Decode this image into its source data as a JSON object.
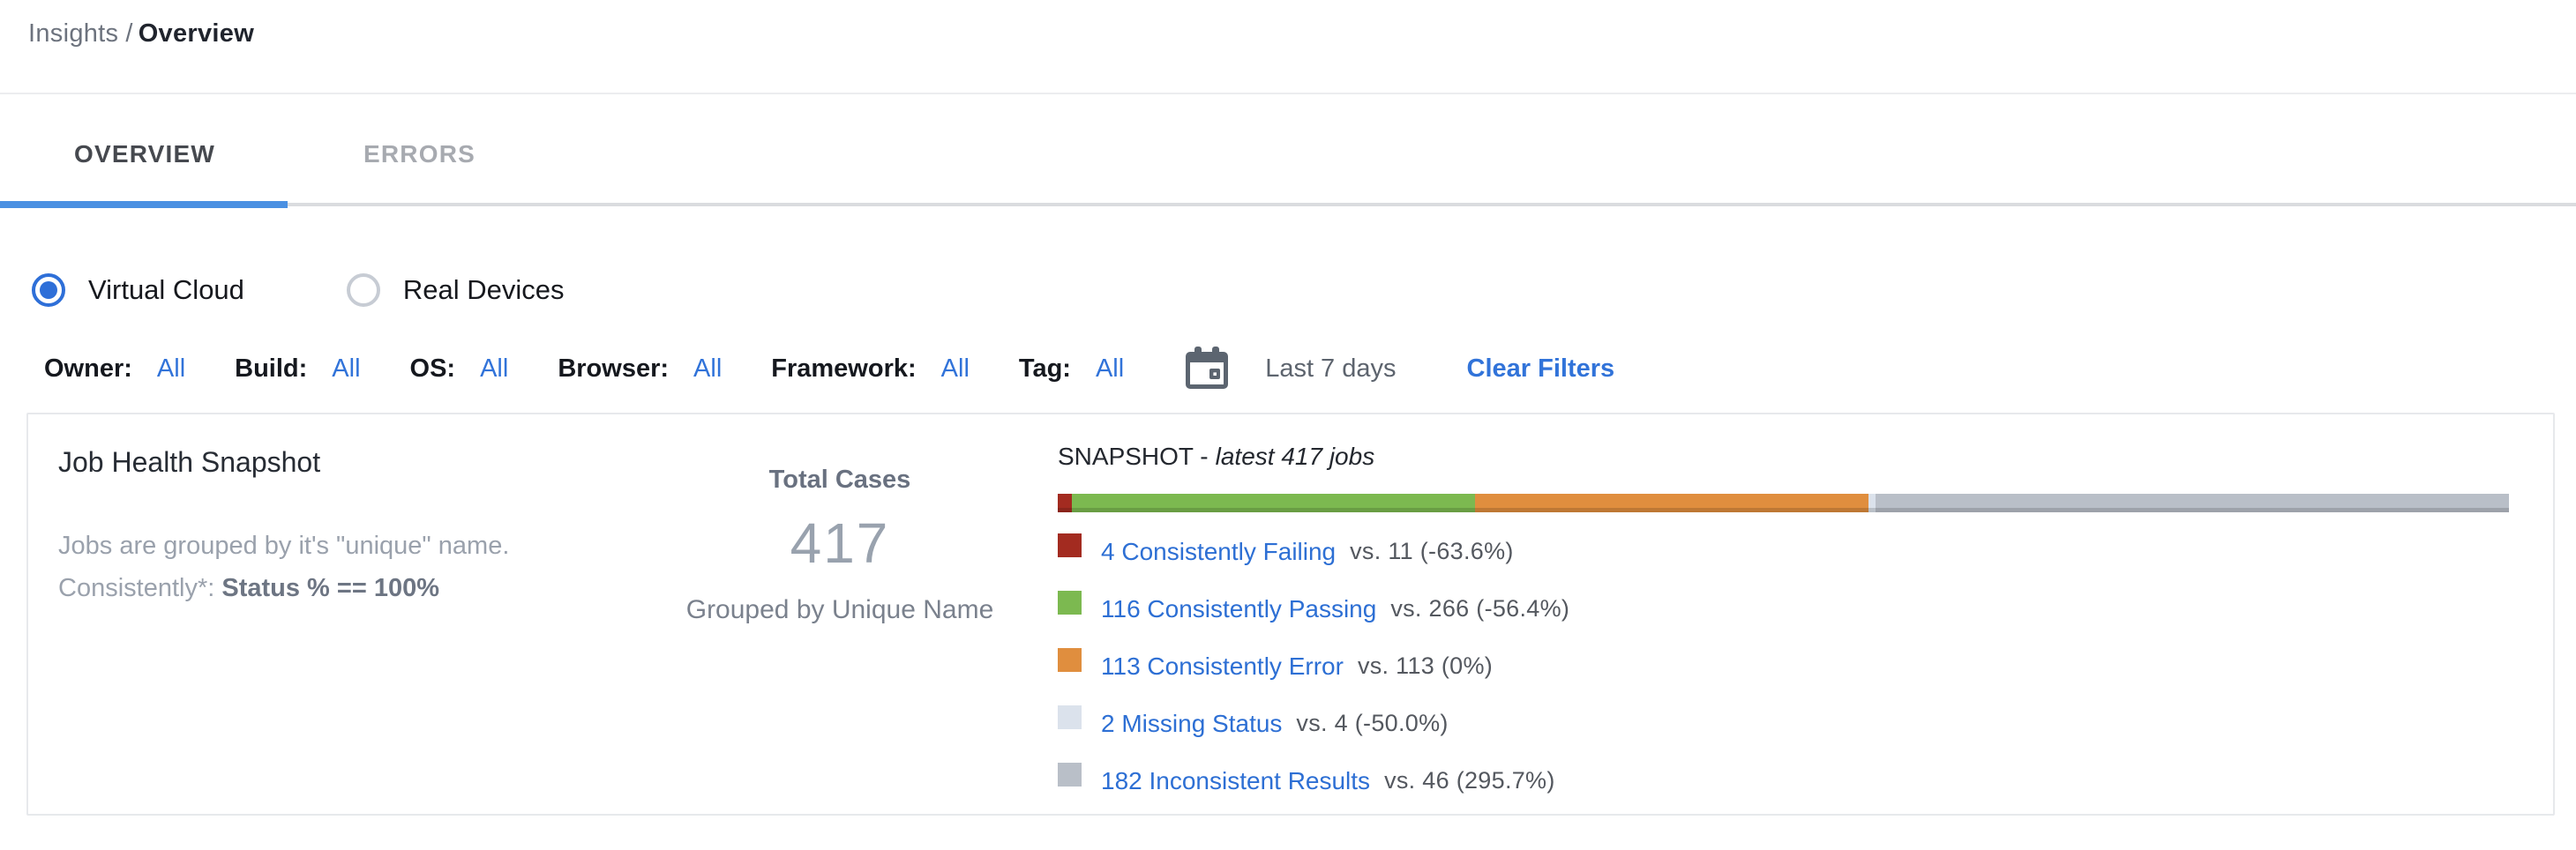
{
  "breadcrumb": {
    "section": "Insights",
    "separator": "/",
    "current": "Overview"
  },
  "tabs": [
    {
      "key": "overview",
      "label": "OVERVIEW",
      "active": true
    },
    {
      "key": "errors",
      "label": "ERRORS",
      "active": false
    }
  ],
  "cloud_toggle": [
    {
      "key": "virtual-cloud",
      "label": "Virtual Cloud",
      "selected": true
    },
    {
      "key": "real-devices",
      "label": "Real Devices",
      "selected": false
    }
  ],
  "filters": {
    "items": [
      {
        "key": "owner",
        "label": "Owner:",
        "value": "All"
      },
      {
        "key": "build",
        "label": "Build:",
        "value": "All"
      },
      {
        "key": "os",
        "label": "OS:",
        "value": "All"
      },
      {
        "key": "browser",
        "label": "Browser:",
        "value": "All"
      },
      {
        "key": "framework",
        "label": "Framework:",
        "value": "All"
      },
      {
        "key": "tag",
        "label": "Tag:",
        "value": "All"
      }
    ],
    "calendar_icon": "calendar-icon",
    "date_range": "Last 7 days",
    "clear_label": "Clear Filters"
  },
  "job_health": {
    "title": "Job Health Snapshot",
    "description_line1": "Jobs are grouped by it's \"unique\" name.",
    "description_line2_prefix": "Consistently*: ",
    "description_line2_bold": "Status % == 100%",
    "total_cases_label": "Total Cases",
    "total_cases_value": "417",
    "total_cases_sub": "Grouped by Unique Name"
  },
  "chart_data": {
    "type": "bar",
    "orientation": "horizontal-stacked",
    "title": "SNAPSHOT - latest 417 jobs",
    "title_prefix": "SNAPSHOT -",
    "title_italic": "latest 417 jobs",
    "total_jobs": 417,
    "legend_position": "below",
    "series": [
      {
        "key": "consistently-failing",
        "label": "Consistently Failing",
        "count": 4,
        "previous": 11,
        "change_pct": -63.6,
        "link_text": "4 Consistently Failing",
        "comparison_text": "vs. 11 (-63.6%)",
        "color": "#a32b20"
      },
      {
        "key": "consistently-passing",
        "label": "Consistently Passing",
        "count": 116,
        "previous": 266,
        "change_pct": -56.4,
        "link_text": "116 Consistently Passing",
        "comparison_text": "vs. 266 (-56.4%)",
        "color": "#7cb950"
      },
      {
        "key": "consistently-error",
        "label": "Consistently Error",
        "count": 113,
        "previous": 113,
        "change_pct": 0,
        "link_text": "113 Consistently Error",
        "comparison_text": "vs. 113 (0%)",
        "color": "#e08e3e"
      },
      {
        "key": "missing-status",
        "label": "Missing Status",
        "count": 2,
        "previous": 4,
        "change_pct": -50.0,
        "link_text": "2 Missing Status",
        "comparison_text": "vs. 4 (-50.0%)",
        "color": "#dbe2ec"
      },
      {
        "key": "inconsistent-results",
        "label": "Inconsistent Results",
        "count": 182,
        "previous": 46,
        "change_pct": 295.7,
        "link_text": "182 Inconsistent Results",
        "comparison_text": "vs. 46 (295.7%)",
        "color": "#b9bfc8"
      }
    ]
  },
  "colors": {
    "link_blue": "#2d6fd4",
    "tab_indicator_blue": "#4a90e2",
    "radio_blue": "#2e6fd8",
    "icon_gray": "#5c6570"
  }
}
